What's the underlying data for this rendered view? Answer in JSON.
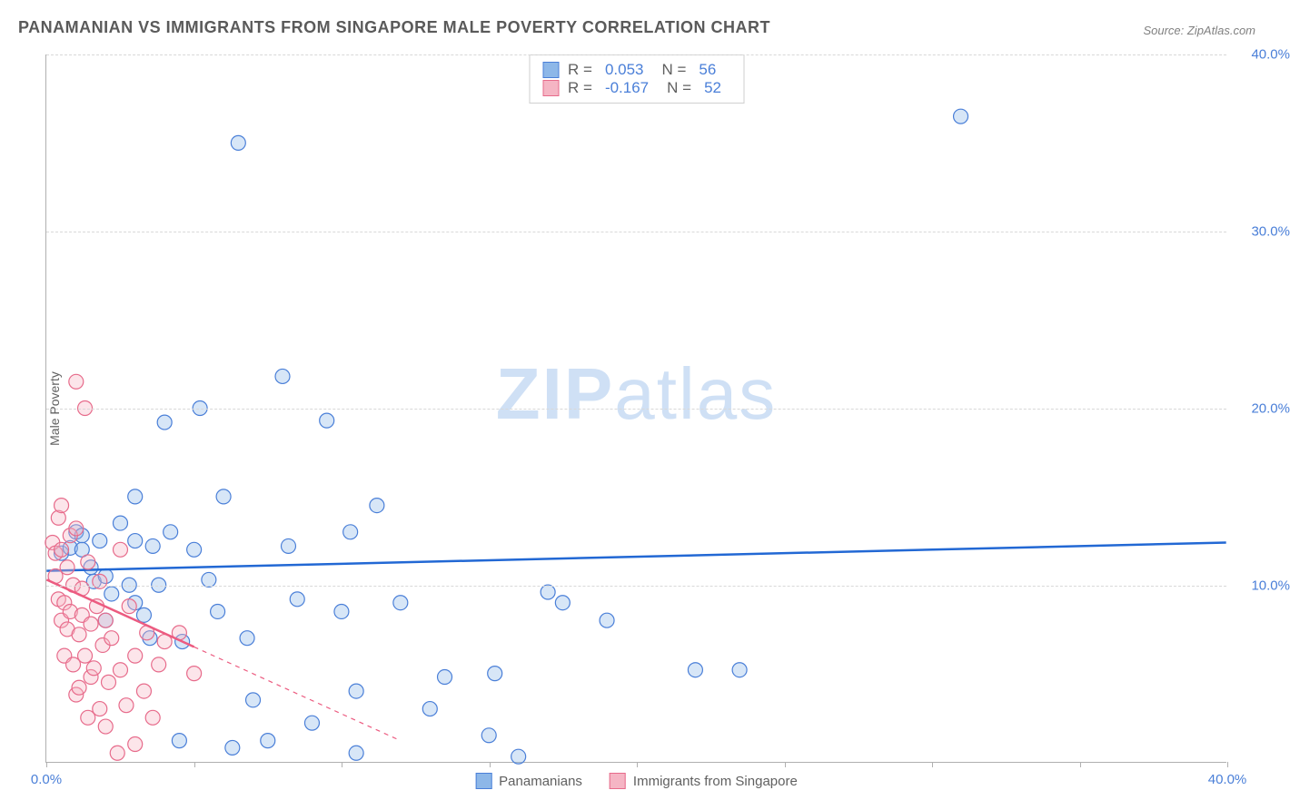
{
  "title": "PANAMANIAN VS IMMIGRANTS FROM SINGAPORE MALE POVERTY CORRELATION CHART",
  "source_label": "Source: ZipAtlas.com",
  "y_axis_label": "Male Poverty",
  "watermark": {
    "bold": "ZIP",
    "rest": "atlas",
    "color": "#cfe0f5"
  },
  "chart": {
    "type": "scatter",
    "background_color": "#ffffff",
    "grid_color": "#d8d8d8",
    "axis_color": "#b0b0b0",
    "tick_label_color": "#4a7fd8",
    "tick_label_fontsize": 15,
    "xlim": [
      0,
      40
    ],
    "ylim": [
      0,
      40
    ],
    "x_ticks": [
      0,
      5,
      10,
      15,
      20,
      25,
      30,
      35,
      40
    ],
    "x_tick_labels": {
      "0": "0.0%",
      "40": "40.0%"
    },
    "y_ticks": [
      10,
      20,
      30,
      40
    ],
    "y_tick_labels": {
      "10": "10.0%",
      "20": "20.0%",
      "30": "30.0%",
      "40": "40.0%"
    },
    "marker_radius": 8,
    "marker_fill_opacity": 0.35,
    "marker_stroke_width": 1.2,
    "series": [
      {
        "name": "Panamanians",
        "color_fill": "#8db7e8",
        "color_stroke": "#4a7fd8",
        "line_color": "#2268d4",
        "line_width": 2.5,
        "trend": {
          "x1": 0,
          "y1": 10.8,
          "x2": 40,
          "y2": 12.4,
          "dashed_after_x": 40
        },
        "stats": {
          "R": "0.053",
          "N": "56"
        },
        "points": [
          [
            0.5,
            11.8
          ],
          [
            0.8,
            12.1
          ],
          [
            1.0,
            13.0
          ],
          [
            1.2,
            12.8
          ],
          [
            1.5,
            11.0
          ],
          [
            1.6,
            10.2
          ],
          [
            1.8,
            12.5
          ],
          [
            2.0,
            10.5
          ],
          [
            2.0,
            8.0
          ],
          [
            2.2,
            9.5
          ],
          [
            2.5,
            13.5
          ],
          [
            2.8,
            10.0
          ],
          [
            3.0,
            15.0
          ],
          [
            3.0,
            9.0
          ],
          [
            3.3,
            8.3
          ],
          [
            3.5,
            7.0
          ],
          [
            3.6,
            12.2
          ],
          [
            3.8,
            10.0
          ],
          [
            4.0,
            19.2
          ],
          [
            4.2,
            13.0
          ],
          [
            4.5,
            1.2
          ],
          [
            4.6,
            6.8
          ],
          [
            5.0,
            12.0
          ],
          [
            5.2,
            20.0
          ],
          [
            5.5,
            10.3
          ],
          [
            5.8,
            8.5
          ],
          [
            6.0,
            15.0
          ],
          [
            6.3,
            0.8
          ],
          [
            6.5,
            35.0
          ],
          [
            6.8,
            7.0
          ],
          [
            7.0,
            3.5
          ],
          [
            7.5,
            1.2
          ],
          [
            8.0,
            21.8
          ],
          [
            8.2,
            12.2
          ],
          [
            8.5,
            9.2
          ],
          [
            9.0,
            2.2
          ],
          [
            9.5,
            19.3
          ],
          [
            10.0,
            8.5
          ],
          [
            10.3,
            13.0
          ],
          [
            10.5,
            0.5
          ],
          [
            10.5,
            4.0
          ],
          [
            11.2,
            14.5
          ],
          [
            12.0,
            9.0
          ],
          [
            13.0,
            3.0
          ],
          [
            13.5,
            4.8
          ],
          [
            15.0,
            1.5
          ],
          [
            15.2,
            5.0
          ],
          [
            16.0,
            0.3
          ],
          [
            17.0,
            9.6
          ],
          [
            17.5,
            9.0
          ],
          [
            19.0,
            8.0
          ],
          [
            22.0,
            5.2
          ],
          [
            23.5,
            5.2
          ],
          [
            31.0,
            36.5
          ],
          [
            3.0,
            12.5
          ],
          [
            1.2,
            12.0
          ]
        ]
      },
      {
        "name": "Immigrants from Singapore",
        "color_fill": "#f5b5c4",
        "color_stroke": "#e76b8b",
        "line_color": "#ec5b80",
        "line_width": 2.5,
        "trend": {
          "x1": 0,
          "y1": 10.3,
          "x2": 5,
          "y2": 6.5,
          "dashed_after_x": 5,
          "dash_end_x": 12,
          "dash_end_y": 1.2
        },
        "stats": {
          "R": "-0.167",
          "N": "52"
        },
        "points": [
          [
            0.2,
            12.4
          ],
          [
            0.3,
            11.8
          ],
          [
            0.3,
            10.5
          ],
          [
            0.4,
            13.8
          ],
          [
            0.4,
            9.2
          ],
          [
            0.5,
            12.0
          ],
          [
            0.5,
            8.0
          ],
          [
            0.5,
            14.5
          ],
          [
            0.6,
            9.0
          ],
          [
            0.6,
            6.0
          ],
          [
            0.7,
            7.5
          ],
          [
            0.7,
            11.0
          ],
          [
            0.8,
            12.8
          ],
          [
            0.8,
            8.5
          ],
          [
            0.9,
            5.5
          ],
          [
            0.9,
            10.0
          ],
          [
            1.0,
            13.2
          ],
          [
            1.0,
            3.8
          ],
          [
            1.0,
            21.5
          ],
          [
            1.1,
            7.2
          ],
          [
            1.1,
            4.2
          ],
          [
            1.2,
            8.3
          ],
          [
            1.2,
            9.8
          ],
          [
            1.3,
            20.0
          ],
          [
            1.3,
            6.0
          ],
          [
            1.4,
            2.5
          ],
          [
            1.4,
            11.3
          ],
          [
            1.5,
            7.8
          ],
          [
            1.5,
            4.8
          ],
          [
            1.6,
            5.3
          ],
          [
            1.7,
            8.8
          ],
          [
            1.8,
            3.0
          ],
          [
            1.8,
            10.2
          ],
          [
            1.9,
            6.6
          ],
          [
            2.0,
            2.0
          ],
          [
            2.0,
            8.0
          ],
          [
            2.1,
            4.5
          ],
          [
            2.2,
            7.0
          ],
          [
            2.4,
            0.5
          ],
          [
            2.5,
            5.2
          ],
          [
            2.5,
            12.0
          ],
          [
            2.7,
            3.2
          ],
          [
            2.8,
            8.8
          ],
          [
            3.0,
            1.0
          ],
          [
            3.0,
            6.0
          ],
          [
            3.3,
            4.0
          ],
          [
            3.4,
            7.3
          ],
          [
            3.6,
            2.5
          ],
          [
            3.8,
            5.5
          ],
          [
            4.0,
            6.8
          ],
          [
            4.5,
            7.3
          ],
          [
            5.0,
            5.0
          ]
        ]
      }
    ]
  },
  "stats_box": {
    "rows": [
      {
        "swatch_fill": "#8db7e8",
        "swatch_stroke": "#4a7fd8",
        "r_label": "R =",
        "r_val": "0.053",
        "n_label": "N =",
        "n_val": "56"
      },
      {
        "swatch_fill": "#f5b5c4",
        "swatch_stroke": "#e76b8b",
        "r_label": "R =",
        "r_val": "-0.167",
        "n_label": "N =",
        "n_val": "52"
      }
    ]
  },
  "legend": [
    {
      "swatch_fill": "#8db7e8",
      "swatch_stroke": "#4a7fd8",
      "label": "Panamanians"
    },
    {
      "swatch_fill": "#f5b5c4",
      "swatch_stroke": "#e76b8b",
      "label": "Immigrants from Singapore"
    }
  ]
}
